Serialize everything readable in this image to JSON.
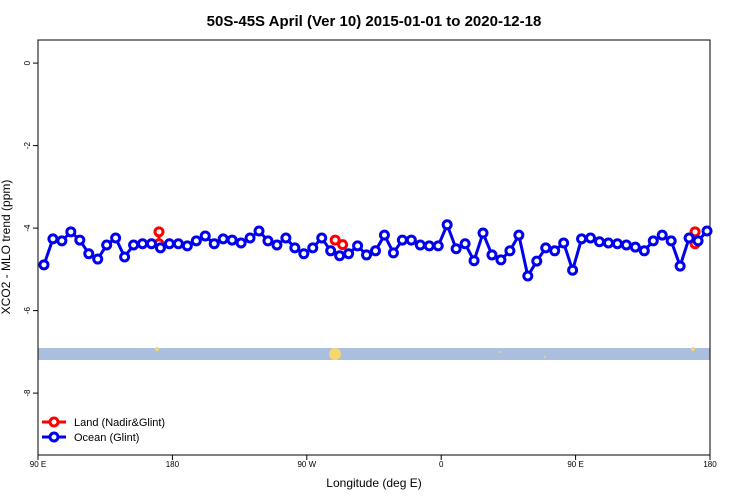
{
  "chart_data": {
    "type": "line",
    "title": "50S-45S April (Ver 10)   2015-01-01 to 2020-12-18",
    "x_label": "Longitude (deg E)",
    "y_label": "XCO2 - MLO trend (ppm)",
    "xlim": [
      90,
      540
    ],
    "xticks": [
      {
        "value": 90,
        "label": "90 E"
      },
      180,
      {
        "value": 270,
        "label": "90 W"
      },
      {
        "value": 360,
        "label": "0"
      },
      {
        "value": 450,
        "label": "90 E"
      },
      {
        "value": 540,
        "label": "180"
      }
    ],
    "ylim": [
      -9.5,
      0.56
    ],
    "yticks": [
      0,
      -2,
      -4,
      -6,
      -8
    ],
    "legend": "bottom-left",
    "series": [
      {
        "name": "Land (Nadir&Glint)",
        "color": "#ff0000",
        "x": [
          171,
          171,
          null,
          289,
          294,
          null,
          530,
          530
        ],
        "values": [
          -4.09,
          -4.38,
          null,
          -4.29,
          -4.4,
          null,
          -4.09,
          -4.38
        ]
      },
      {
        "name": "Ocean (Glint)",
        "color": "#0000ee",
        "x": [
          94,
          100,
          106,
          112,
          118,
          124,
          130,
          136,
          142,
          148,
          154,
          160,
          166,
          172,
          178,
          184,
          190,
          196,
          202,
          208,
          214,
          220,
          226,
          232,
          238,
          244,
          250,
          256,
          262,
          268,
          274,
          280,
          286,
          292,
          298,
          304,
          310,
          316,
          322,
          328,
          334,
          340,
          346,
          352,
          358,
          364,
          370,
          376,
          382,
          388,
          394,
          400,
          406,
          412,
          418,
          424,
          430,
          436,
          442,
          448,
          454,
          460,
          466,
          472,
          478,
          484,
          490,
          496,
          502,
          508,
          514,
          520,
          526,
          532,
          538
        ],
        "values": [
          -4.89,
          -4.26,
          -4.31,
          -4.09,
          -4.29,
          -4.62,
          -4.75,
          -4.41,
          -4.24,
          -4.7,
          -4.41,
          -4.38,
          -4.38,
          -4.48,
          -4.38,
          -4.38,
          -4.43,
          -4.31,
          -4.19,
          -4.38,
          -4.26,
          -4.29,
          -4.36,
          -4.24,
          -4.07,
          -4.31,
          -4.41,
          -4.24,
          -4.48,
          -4.62,
          -4.48,
          -4.24,
          -4.55,
          -4.67,
          -4.62,
          -4.43,
          -4.65,
          -4.55,
          -4.17,
          -4.6,
          -4.29,
          -4.29,
          -4.41,
          -4.43,
          -4.43,
          -3.92,
          -4.5,
          -4.38,
          -4.79,
          -4.12,
          -4.65,
          -4.77,
          -4.55,
          -4.17,
          -5.16,
          -4.8,
          -4.48,
          -4.55,
          -4.36,
          -5.02,
          -4.26,
          -4.24,
          -4.33,
          -4.36,
          -4.38,
          -4.41,
          -4.46,
          -4.55,
          -4.31,
          -4.17,
          -4.31,
          -4.92,
          -4.24,
          -4.31,
          -4.07
        ]
      }
    ]
  }
}
